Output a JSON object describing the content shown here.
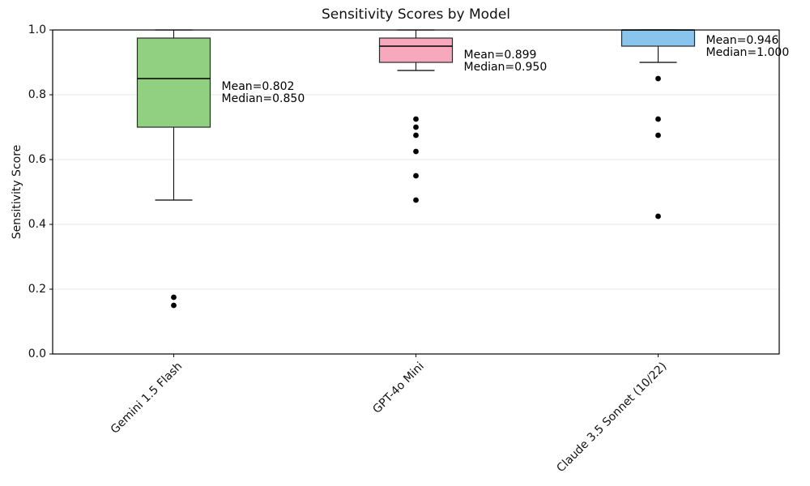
{
  "chart_data": {
    "type": "box",
    "title": "Sensitivity Scores by Model",
    "ylabel": "Sensitivity Score",
    "xlabel": "",
    "ylim": [
      0.0,
      1.0
    ],
    "grid": "y-only",
    "legend": "none",
    "yticks": [
      {
        "value": 0.0,
        "label": "0.0"
      },
      {
        "value": 0.2,
        "label": "0.2"
      },
      {
        "value": 0.4,
        "label": "0.4"
      },
      {
        "value": 0.6,
        "label": "0.6"
      },
      {
        "value": 0.8,
        "label": "0.8"
      },
      {
        "value": 1.0,
        "label": "1.0"
      }
    ],
    "categories": [
      "Gemini 1.5 Flash",
      "GPT-4o Mini",
      "Claude 3.5 Sonnet (10/22)"
    ],
    "series": [
      {
        "name": "Gemini 1.5 Flash",
        "box_color": "#90d080",
        "whisker_low": 0.475,
        "q1": 0.7,
        "median": 0.85,
        "q3": 0.975,
        "whisker_high": 1.0,
        "outliers": [
          0.175,
          0.15
        ],
        "mean": 0.802,
        "annotation": [
          "Mean=0.802",
          "Median=0.850"
        ]
      },
      {
        "name": "GPT-4o Mini",
        "box_color": "#f8a8bc",
        "whisker_low": 0.875,
        "q1": 0.9,
        "median": 0.95,
        "q3": 0.975,
        "whisker_high": 1.0,
        "outliers": [
          0.725,
          0.7,
          0.675,
          0.625,
          0.55,
          0.475
        ],
        "mean": 0.899,
        "annotation": [
          "Mean=0.899",
          "Median=0.950"
        ]
      },
      {
        "name": "Claude 3.5 Sonnet (10/22)",
        "box_color": "#89c4ec",
        "whisker_low": 0.9,
        "q1": 0.95,
        "median": 1.0,
        "q3": 1.0,
        "whisker_high": 1.0,
        "outliers": [
          0.85,
          0.725,
          0.675,
          0.425
        ],
        "mean": 0.946,
        "annotation": [
          "Mean=0.946",
          "Median=1.000"
        ]
      }
    ]
  }
}
